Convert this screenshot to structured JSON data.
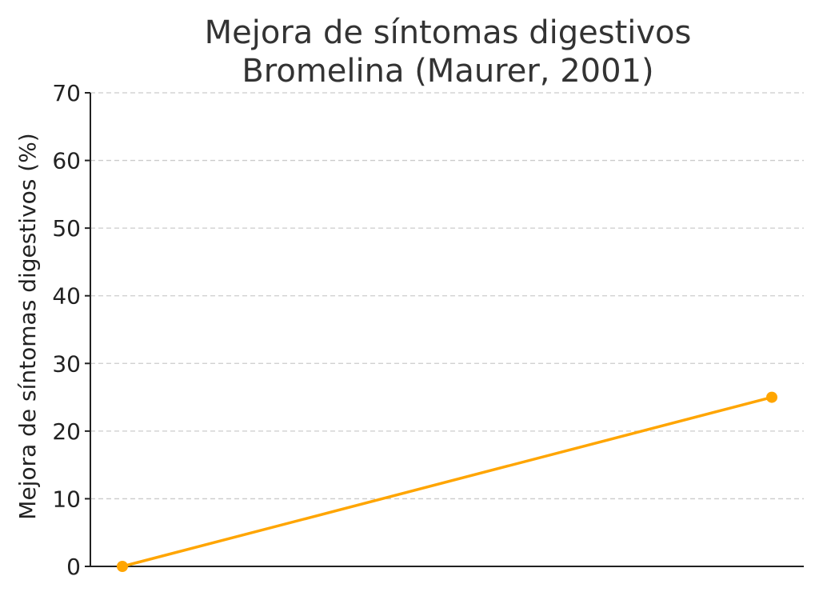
{
  "chart_data": {
    "type": "line",
    "title": [
      "Mejora de síntomas digestivos",
      "Bromelina (Maurer, 2001)"
    ],
    "xlabel": "",
    "ylabel": "Mejora de síntomas digestivos (%)",
    "x": [
      0,
      1
    ],
    "ylim": [
      0,
      70
    ],
    "yticks": [
      0,
      10,
      20,
      30,
      40,
      50,
      60,
      70
    ],
    "grid": true,
    "series": [
      {
        "values": [
          0,
          25
        ],
        "color": "#FFA500"
      }
    ]
  }
}
